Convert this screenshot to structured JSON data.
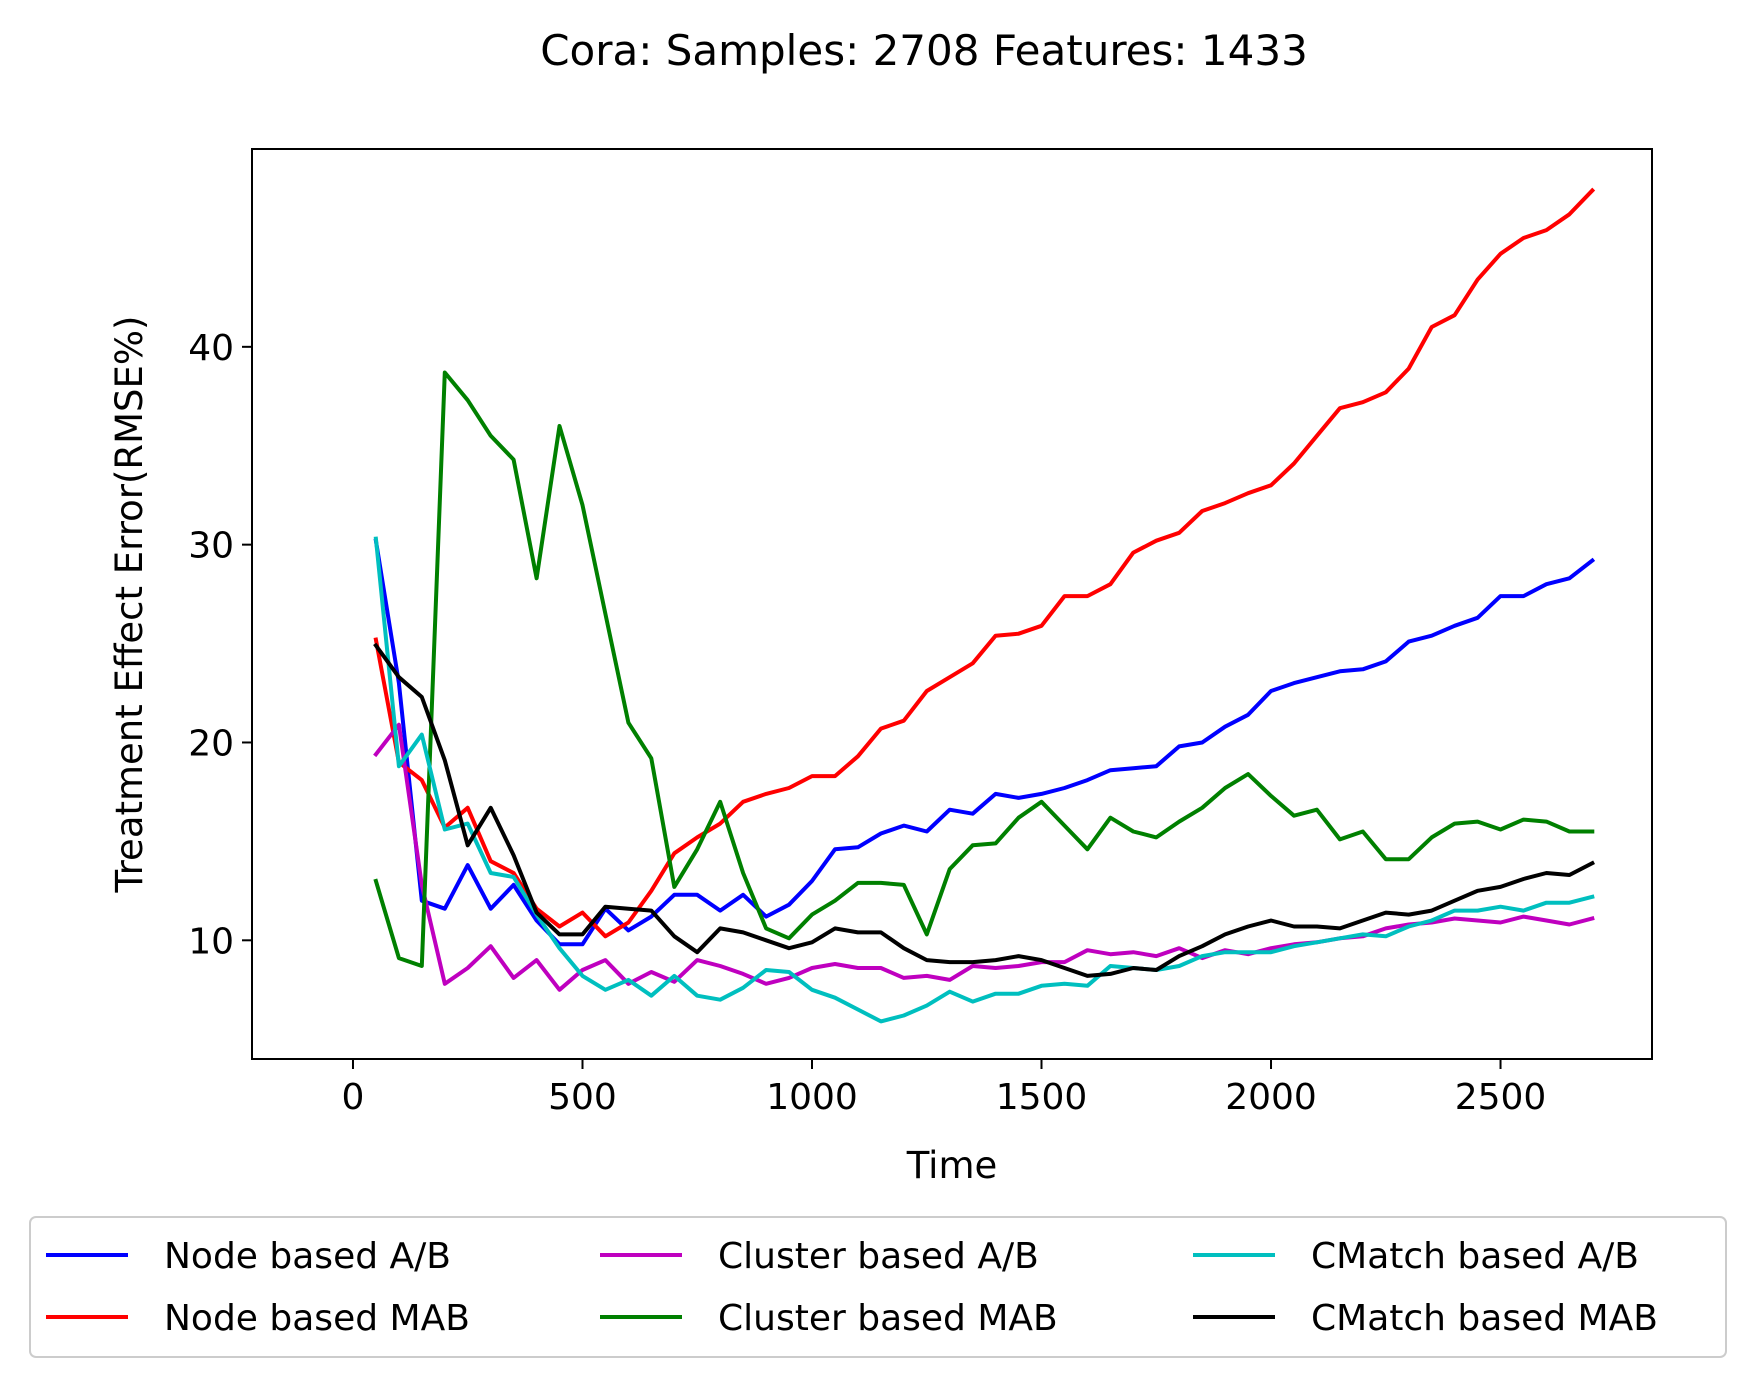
{
  "chart_data": {
    "type": "line",
    "title": "Cora: Samples: 2708  Features: 1433",
    "xlabel": "Time",
    "ylabel": "Treatment Effect Error(RMSE%)",
    "xlim": [
      -220,
      2830
    ],
    "ylim": [
      4,
      50
    ],
    "xticks": [
      0,
      500,
      1000,
      1500,
      2000,
      2500
    ],
    "yticks": [
      10,
      20,
      30,
      40
    ],
    "grid": false,
    "legend_position": "bottom-center",
    "x": [
      50,
      100,
      150,
      200,
      250,
      300,
      350,
      400,
      450,
      500,
      550,
      600,
      650,
      700,
      750,
      800,
      850,
      900,
      950,
      1000,
      1050,
      1100,
      1150,
      1200,
      1250,
      1300,
      1350,
      1400,
      1450,
      1500,
      1550,
      1600,
      1650,
      1700,
      1750,
      1800,
      1850,
      1900,
      1950,
      2000,
      2050,
      2100,
      2150,
      2200,
      2250,
      2300,
      2350,
      2400,
      2450,
      2500,
      2550,
      2600,
      2650,
      2700
    ],
    "series": [
      {
        "name": "Node based A/B",
        "color": "#0000ff",
        "values": [
          30.2,
          23.0,
          12.0,
          11.6,
          13.8,
          11.6,
          12.8,
          11.0,
          9.8,
          9.8,
          11.6,
          10.5,
          11.2,
          12.3,
          12.3,
          11.5,
          12.3,
          11.2,
          11.8,
          13.0,
          14.6,
          14.7,
          15.4,
          15.8,
          15.5,
          16.6,
          16.4,
          17.4,
          17.2,
          17.4,
          17.7,
          18.1,
          18.6,
          18.7,
          18.8,
          19.8,
          20.0,
          20.8,
          21.4,
          22.6,
          23.0,
          23.3,
          23.6,
          23.7,
          24.1,
          25.1,
          25.4,
          25.9,
          26.3,
          27.4,
          27.4,
          28.0,
          28.3,
          29.2
        ]
      },
      {
        "name": "Node based MAB",
        "color": "#ff0000",
        "values": [
          25.2,
          19.0,
          18.1,
          15.7,
          16.7,
          14.0,
          13.4,
          11.6,
          10.7,
          11.4,
          10.2,
          10.9,
          12.5,
          14.4,
          15.2,
          15.9,
          17.0,
          17.4,
          17.7,
          18.3,
          18.3,
          19.3,
          20.7,
          21.1,
          22.6,
          23.3,
          24.0,
          25.4,
          25.5,
          25.9,
          27.4,
          27.4,
          28.0,
          29.6,
          30.2,
          30.6,
          31.7,
          32.1,
          32.6,
          33.0,
          34.1,
          35.5,
          36.9,
          37.2,
          37.7,
          38.9,
          41.0,
          41.6,
          43.4,
          44.7,
          45.5,
          45.9,
          46.7,
          47.9
        ]
      },
      {
        "name": "Cluster based A/B",
        "color": "#bf00bf",
        "values": [
          19.4,
          20.9,
          12.8,
          7.8,
          8.6,
          9.7,
          8.1,
          9.0,
          7.5,
          8.5,
          9.0,
          7.8,
          8.4,
          7.9,
          9.0,
          8.7,
          8.3,
          7.8,
          8.1,
          8.6,
          8.8,
          8.6,
          8.6,
          8.1,
          8.2,
          8.0,
          8.7,
          8.6,
          8.7,
          8.9,
          8.9,
          9.5,
          9.3,
          9.4,
          9.2,
          9.6,
          9.1,
          9.5,
          9.3,
          9.6,
          9.8,
          9.9,
          10.1,
          10.2,
          10.6,
          10.8,
          10.9,
          11.1,
          11.0,
          10.9,
          11.2,
          11.0,
          10.8,
          11.1
        ]
      },
      {
        "name": "Cluster based MAB",
        "color": "#008000",
        "values": [
          13.0,
          9.1,
          8.7,
          38.7,
          37.3,
          35.5,
          34.3,
          28.3,
          36.0,
          32.0,
          26.5,
          21.0,
          19.2,
          12.7,
          14.6,
          17.0,
          13.4,
          10.6,
          10.1,
          11.3,
          12.0,
          12.9,
          12.9,
          12.8,
          10.3,
          13.6,
          14.8,
          14.9,
          16.2,
          17.0,
          15.8,
          14.6,
          16.2,
          15.5,
          15.2,
          16.0,
          16.7,
          17.7,
          18.4,
          17.3,
          16.3,
          16.6,
          15.1,
          15.5,
          14.1,
          14.1,
          15.2,
          15.9,
          16.0,
          15.6,
          16.1,
          16.0,
          15.5,
          15.5
        ]
      },
      {
        "name": "CMatch based A/B",
        "color": "#00bfbf",
        "values": [
          30.3,
          18.8,
          20.4,
          15.6,
          15.9,
          13.4,
          13.2,
          11.3,
          9.6,
          8.2,
          7.5,
          8.0,
          7.2,
          8.2,
          7.2,
          7.0,
          7.6,
          8.5,
          8.4,
          7.5,
          7.1,
          6.5,
          5.9,
          6.2,
          6.7,
          7.4,
          6.9,
          7.3,
          7.3,
          7.7,
          7.8,
          7.7,
          8.7,
          8.6,
          8.5,
          8.7,
          9.2,
          9.4,
          9.4,
          9.4,
          9.7,
          9.9,
          10.1,
          10.3,
          10.2,
          10.7,
          11.0,
          11.5,
          11.5,
          11.7,
          11.5,
          11.9,
          11.9,
          12.2
        ]
      },
      {
        "name": "CMatch based MAB",
        "color": "#000000",
        "values": [
          24.9,
          23.3,
          22.3,
          19.1,
          14.8,
          16.7,
          14.3,
          11.4,
          10.3,
          10.3,
          11.7,
          11.6,
          11.5,
          10.2,
          9.4,
          10.6,
          10.4,
          10.0,
          9.6,
          9.9,
          10.6,
          10.4,
          10.4,
          9.6,
          9.0,
          8.9,
          8.9,
          9.0,
          9.2,
          9.0,
          8.6,
          8.2,
          8.3,
          8.6,
          8.5,
          9.2,
          9.7,
          10.3,
          10.7,
          11.0,
          10.7,
          10.7,
          10.6,
          11.0,
          11.4,
          11.3,
          11.5,
          12.0,
          12.5,
          12.7,
          13.1,
          13.4,
          13.3,
          13.9
        ]
      }
    ]
  }
}
